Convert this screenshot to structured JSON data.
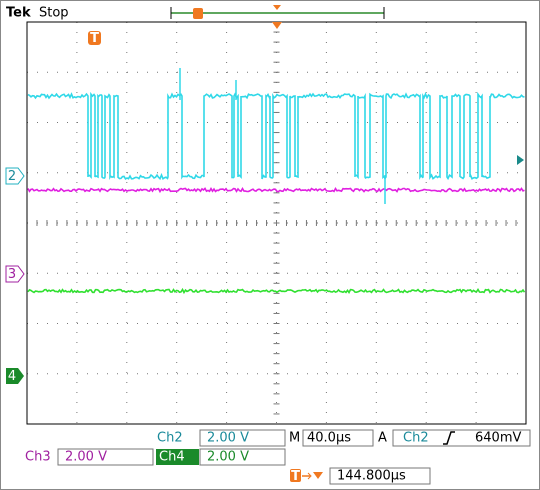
{
  "header": {
    "brand": "Tek",
    "status": "Stop"
  },
  "markers": {
    "trigger": "T",
    "ch2": "2",
    "ch3": "3",
    "ch4": "4"
  },
  "readouts": {
    "ch2": {
      "label": "Ch2",
      "scale": "2.00 V"
    },
    "ch3": {
      "label": "Ch3",
      "scale": "2.00 V"
    },
    "ch4": {
      "label": "Ch4",
      "scale": "2.00 V"
    },
    "timebase": {
      "label": "M",
      "value": "40.0µs"
    },
    "trigger": {
      "label": "A",
      "source": "Ch2",
      "level": "640mV"
    },
    "position": {
      "value": "144.800µs"
    }
  }
}
